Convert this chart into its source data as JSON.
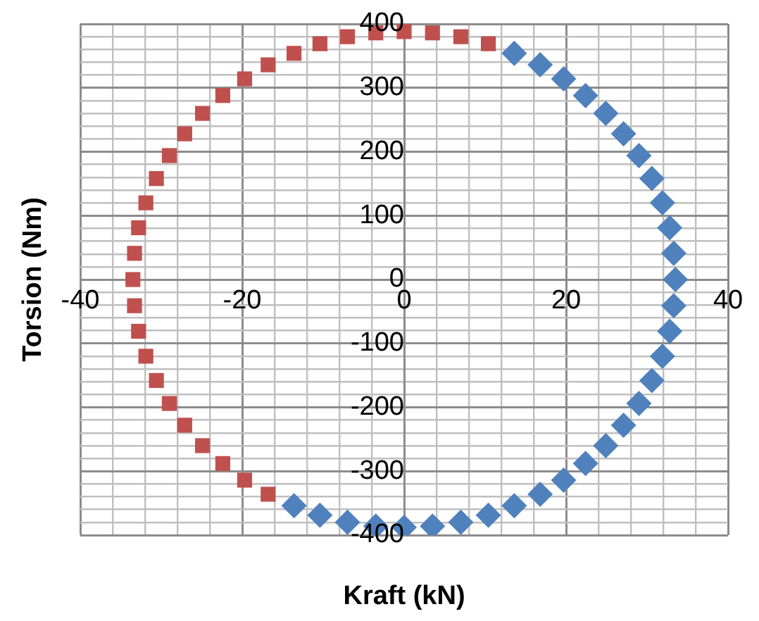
{
  "chart_data": {
    "type": "scatter",
    "xlabel": "Kraft (kN)",
    "ylabel": "Torsion (Nm)",
    "grid": true,
    "legend": false,
    "xlim": [
      -40,
      40
    ],
    "ylim": [
      -400,
      400
    ],
    "xticks": [
      -40,
      {
        "value": -36,
        "label": null
      },
      {
        "value": -32,
        "label": null
      },
      {
        "value": -28,
        "label": null
      },
      {
        "value": -24,
        "label": null
      },
      -20,
      {
        "value": -16,
        "label": null
      },
      {
        "value": -12,
        "label": null
      },
      {
        "value": -8,
        "label": null
      },
      {
        "value": -4,
        "label": null
      },
      0,
      {
        "value": 4,
        "label": null
      },
      {
        "value": 8,
        "label": null
      },
      {
        "value": 12,
        "label": null
      },
      {
        "value": 16,
        "label": null
      },
      20,
      {
        "value": 24,
        "label": null
      },
      {
        "value": 28,
        "label": null
      },
      {
        "value": 32,
        "label": null
      },
      {
        "value": 36,
        "label": null
      },
      40
    ],
    "yticks": [
      -400,
      {
        "value": -380,
        "label": null
      },
      {
        "value": -360,
        "label": null
      },
      {
        "value": -340,
        "label": null
      },
      {
        "value": -320,
        "label": null
      },
      -300,
      {
        "value": -280,
        "label": null
      },
      {
        "value": -260,
        "label": null
      },
      {
        "value": -240,
        "label": null
      },
      {
        "value": -220,
        "label": null
      },
      -200,
      {
        "value": -180,
        "label": null
      },
      {
        "value": -160,
        "label": null
      },
      {
        "value": -140,
        "label": null
      },
      {
        "value": -120,
        "label": null
      },
      -100,
      {
        "value": -80,
        "label": null
      },
      {
        "value": -60,
        "label": null
      },
      {
        "value": -40,
        "label": null
      },
      {
        "value": -20,
        "label": null
      },
      0,
      {
        "value": 20,
        "label": null
      },
      {
        "value": 40,
        "label": null
      },
      {
        "value": 60,
        "label": null
      },
      {
        "value": 80,
        "label": null
      },
      100,
      {
        "value": 120,
        "label": null
      },
      {
        "value": 140,
        "label": null
      },
      {
        "value": 160,
        "label": null
      },
      {
        "value": 180,
        "label": null
      },
      200,
      {
        "value": 220,
        "label": null
      },
      {
        "value": 240,
        "label": null
      },
      {
        "value": 260,
        "label": null
      },
      {
        "value": 280,
        "label": null
      },
      300,
      {
        "value": 320,
        "label": null
      },
      {
        "value": 340,
        "label": null
      },
      {
        "value": 360,
        "label": null
      },
      {
        "value": 380,
        "label": null
      },
      400
    ],
    "series": [
      {
        "color": "#4f81bd",
        "marker": "diamond",
        "x": [
          13.6,
          16.8,
          19.7,
          22.4,
          24.9,
          27.1,
          29.0,
          30.6,
          31.9,
          32.8,
          33.3,
          33.5,
          33.3,
          32.8,
          31.9,
          30.6,
          29.0,
          27.1,
          24.9,
          22.4,
          19.7,
          16.8,
          13.6,
          10.4,
          7.0,
          3.5,
          0,
          -3.5,
          -7.0,
          -10.4,
          -13.6
        ],
        "values": [
          354,
          336,
          314,
          288,
          260,
          228,
          194,
          158,
          120,
          81,
          41,
          0,
          -41,
          -81,
          -120,
          -158,
          -194,
          -228,
          -260,
          -288,
          -314,
          -336,
          -354,
          -369,
          -380,
          -386,
          -388,
          -386,
          -380,
          -369,
          -354
        ]
      },
      {
        "color": "#c0504d",
        "marker": "square",
        "x": [
          10.4,
          7.0,
          3.5,
          0,
          -3.5,
          -7.0,
          -10.4,
          -13.6,
          -16.8,
          -19.7,
          -22.4,
          -24.9,
          -27.1,
          -29.0,
          -30.6,
          -31.9,
          -32.8,
          -33.3,
          -33.5,
          -33.3,
          -32.8,
          -31.9,
          -30.6,
          -29.0,
          -27.1,
          -24.9,
          -22.4,
          -19.7,
          -16.8
        ],
        "values": [
          369,
          380,
          386,
          388,
          386,
          380,
          369,
          354,
          336,
          314,
          288,
          260,
          228,
          194,
          158,
          120,
          81,
          41,
          0,
          -41,
          -81,
          -120,
          -158,
          -194,
          -228,
          -260,
          -288,
          -314,
          -336
        ]
      }
    ]
  }
}
